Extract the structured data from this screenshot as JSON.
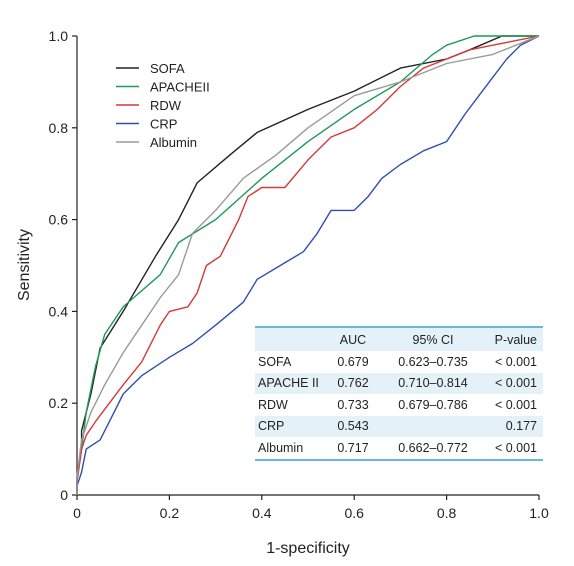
{
  "chart_data": {
    "type": "line",
    "title": "",
    "xlabel": "1-specificity",
    "ylabel": "Sensitivity",
    "xlim": [
      0,
      1
    ],
    "ylim": [
      0,
      1
    ],
    "x_ticks": [
      "0",
      "0.2",
      "0.4",
      "0.6",
      "0.8",
      "1.0"
    ],
    "y_ticks": [
      "0",
      "0.2",
      "0.4",
      "0.6",
      "0.8",
      "1.0"
    ],
    "legend_position": "top-left",
    "grid": false,
    "series": [
      {
        "name": "SOFA",
        "color": "#222222",
        "points": [
          [
            0,
            0
          ],
          [
            0,
            0.04
          ],
          [
            0.01,
            0.1
          ],
          [
            0.01,
            0.14
          ],
          [
            0.03,
            0.22
          ],
          [
            0.05,
            0.32
          ],
          [
            0.1,
            0.4
          ],
          [
            0.17,
            0.52
          ],
          [
            0.22,
            0.6
          ],
          [
            0.26,
            0.68
          ],
          [
            0.33,
            0.74
          ],
          [
            0.39,
            0.79
          ],
          [
            0.5,
            0.84
          ],
          [
            0.6,
            0.88
          ],
          [
            0.7,
            0.93
          ],
          [
            0.8,
            0.95
          ],
          [
            0.85,
            0.97
          ],
          [
            0.92,
            1.0
          ],
          [
            1.0,
            1.0
          ]
        ]
      },
      {
        "name": "APACHEII",
        "color": "#1e9a55",
        "points": [
          [
            0,
            0
          ],
          [
            0,
            0.03
          ],
          [
            0.01,
            0.1
          ],
          [
            0.02,
            0.18
          ],
          [
            0.04,
            0.28
          ],
          [
            0.06,
            0.35
          ],
          [
            0.1,
            0.41
          ],
          [
            0.18,
            0.48
          ],
          [
            0.22,
            0.55
          ],
          [
            0.3,
            0.6
          ],
          [
            0.4,
            0.69
          ],
          [
            0.5,
            0.77
          ],
          [
            0.6,
            0.84
          ],
          [
            0.7,
            0.9
          ],
          [
            0.77,
            0.96
          ],
          [
            0.8,
            0.98
          ],
          [
            0.86,
            1.0
          ],
          [
            1.0,
            1.0
          ]
        ]
      },
      {
        "name": "RDW",
        "color": "#d43a3a",
        "points": [
          [
            0,
            0
          ],
          [
            0,
            0.03
          ],
          [
            0.01,
            0.1
          ],
          [
            0.02,
            0.13
          ],
          [
            0.04,
            0.16
          ],
          [
            0.07,
            0.2
          ],
          [
            0.1,
            0.24
          ],
          [
            0.14,
            0.29
          ],
          [
            0.18,
            0.37
          ],
          [
            0.2,
            0.4
          ],
          [
            0.24,
            0.41
          ],
          [
            0.26,
            0.44
          ],
          [
            0.28,
            0.5
          ],
          [
            0.31,
            0.52
          ],
          [
            0.33,
            0.56
          ],
          [
            0.35,
            0.6
          ],
          [
            0.37,
            0.65
          ],
          [
            0.4,
            0.67
          ],
          [
            0.45,
            0.67
          ],
          [
            0.5,
            0.73
          ],
          [
            0.55,
            0.78
          ],
          [
            0.6,
            0.8
          ],
          [
            0.65,
            0.84
          ],
          [
            0.7,
            0.89
          ],
          [
            0.75,
            0.93
          ],
          [
            0.8,
            0.95
          ],
          [
            0.85,
            0.97
          ],
          [
            0.9,
            0.98
          ],
          [
            0.95,
            0.99
          ],
          [
            1.0,
            1.0
          ]
        ]
      },
      {
        "name": "CRP",
        "color": "#2f4fb0",
        "points": [
          [
            0,
            0
          ],
          [
            0,
            0.02
          ],
          [
            0.01,
            0.05
          ],
          [
            0.02,
            0.1
          ],
          [
            0.05,
            0.12
          ],
          [
            0.08,
            0.18
          ],
          [
            0.1,
            0.22
          ],
          [
            0.14,
            0.26
          ],
          [
            0.2,
            0.3
          ],
          [
            0.25,
            0.33
          ],
          [
            0.3,
            0.37
          ],
          [
            0.36,
            0.42
          ],
          [
            0.39,
            0.47
          ],
          [
            0.44,
            0.5
          ],
          [
            0.49,
            0.53
          ],
          [
            0.52,
            0.57
          ],
          [
            0.55,
            0.62
          ],
          [
            0.6,
            0.62
          ],
          [
            0.63,
            0.65
          ],
          [
            0.66,
            0.69
          ],
          [
            0.7,
            0.72
          ],
          [
            0.75,
            0.75
          ],
          [
            0.8,
            0.77
          ],
          [
            0.84,
            0.83
          ],
          [
            0.87,
            0.87
          ],
          [
            0.9,
            0.91
          ],
          [
            0.93,
            0.95
          ],
          [
            0.96,
            0.98
          ],
          [
            1.0,
            1.0
          ]
        ]
      },
      {
        "name": "Albumin",
        "color": "#9a9a9a",
        "points": [
          [
            0,
            0
          ],
          [
            0,
            0.04
          ],
          [
            0.01,
            0.12
          ],
          [
            0.03,
            0.18
          ],
          [
            0.06,
            0.24
          ],
          [
            0.1,
            0.31
          ],
          [
            0.14,
            0.37
          ],
          [
            0.18,
            0.43
          ],
          [
            0.22,
            0.48
          ],
          [
            0.25,
            0.57
          ],
          [
            0.3,
            0.62
          ],
          [
            0.36,
            0.69
          ],
          [
            0.43,
            0.74
          ],
          [
            0.5,
            0.8
          ],
          [
            0.6,
            0.87
          ],
          [
            0.7,
            0.9
          ],
          [
            0.8,
            0.94
          ],
          [
            0.9,
            0.96
          ],
          [
            0.95,
            0.98
          ],
          [
            1.0,
            1.0
          ]
        ]
      }
    ]
  },
  "table": {
    "header": [
      "",
      "AUC",
      "95% CI",
      "P-value"
    ],
    "rows": [
      {
        "name": "SOFA",
        "auc": "0.679",
        "ci": "0.623–0.735",
        "p": "< 0.001"
      },
      {
        "name": "APACHE II",
        "auc": "0.762",
        "ci": "0.710–0.814",
        "p": "< 0.001"
      },
      {
        "name": "RDW",
        "auc": "0.733",
        "ci": "0.679–0.786",
        "p": "< 0.001"
      },
      {
        "name": "CRP",
        "auc": "0.543",
        "ci": "",
        "p": "0.177"
      },
      {
        "name": "Albumin",
        "auc": "0.717",
        "ci": "0.662–0.772",
        "p": "< 0.001"
      }
    ]
  },
  "colors": {
    "table_shade": "#e4f1f8",
    "table_rule": "#66b9d9"
  }
}
